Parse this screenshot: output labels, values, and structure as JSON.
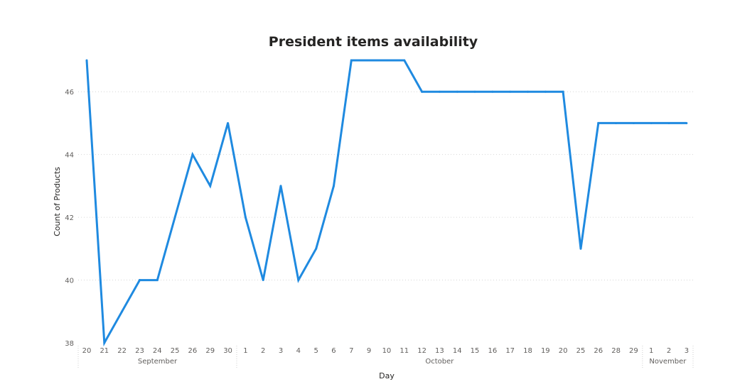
{
  "chart_data": {
    "type": "line",
    "title": "President items availability",
    "xlabel": "Day",
    "ylabel": "Count of Products",
    "ylim": [
      38,
      47
    ],
    "y_ticks": [
      38,
      40,
      42,
      44,
      46
    ],
    "grid": true,
    "legend": "none",
    "line_color": "#1f8ae0",
    "months": [
      {
        "name": "September",
        "days": [
          "20",
          "21",
          "22",
          "23",
          "24",
          "25",
          "26",
          "29",
          "30"
        ]
      },
      {
        "name": "October",
        "days": [
          "1",
          "2",
          "3",
          "4",
          "5",
          "6",
          "7",
          "9",
          "10",
          "11",
          "12",
          "13",
          "14",
          "15",
          "16",
          "17",
          "18",
          "19",
          "20",
          "25",
          "26",
          "28",
          "29"
        ]
      },
      {
        "name": "November",
        "days": [
          "1",
          "2",
          "3"
        ]
      }
    ],
    "x": [
      "Sep 20",
      "Sep 21",
      "Sep 22",
      "Sep 23",
      "Sep 24",
      "Sep 25",
      "Sep 26",
      "Sep 29",
      "Sep 30",
      "Oct 1",
      "Oct 2",
      "Oct 3",
      "Oct 4",
      "Oct 5",
      "Oct 6",
      "Oct 7",
      "Oct 9",
      "Oct 10",
      "Oct 11",
      "Oct 12",
      "Oct 13",
      "Oct 14",
      "Oct 15",
      "Oct 16",
      "Oct 17",
      "Oct 18",
      "Oct 19",
      "Oct 20",
      "Oct 25",
      "Oct 26",
      "Oct 28",
      "Oct 29",
      "Nov 1",
      "Nov 2",
      "Nov 3"
    ],
    "values": [
      47,
      38,
      39,
      40,
      40,
      42,
      44,
      43,
      45,
      42,
      40,
      43,
      40,
      41,
      43,
      47,
      47,
      47,
      47,
      46,
      46,
      46,
      46,
      46,
      46,
      46,
      46,
      46,
      41,
      45,
      45,
      45,
      45,
      45,
      45
    ]
  }
}
